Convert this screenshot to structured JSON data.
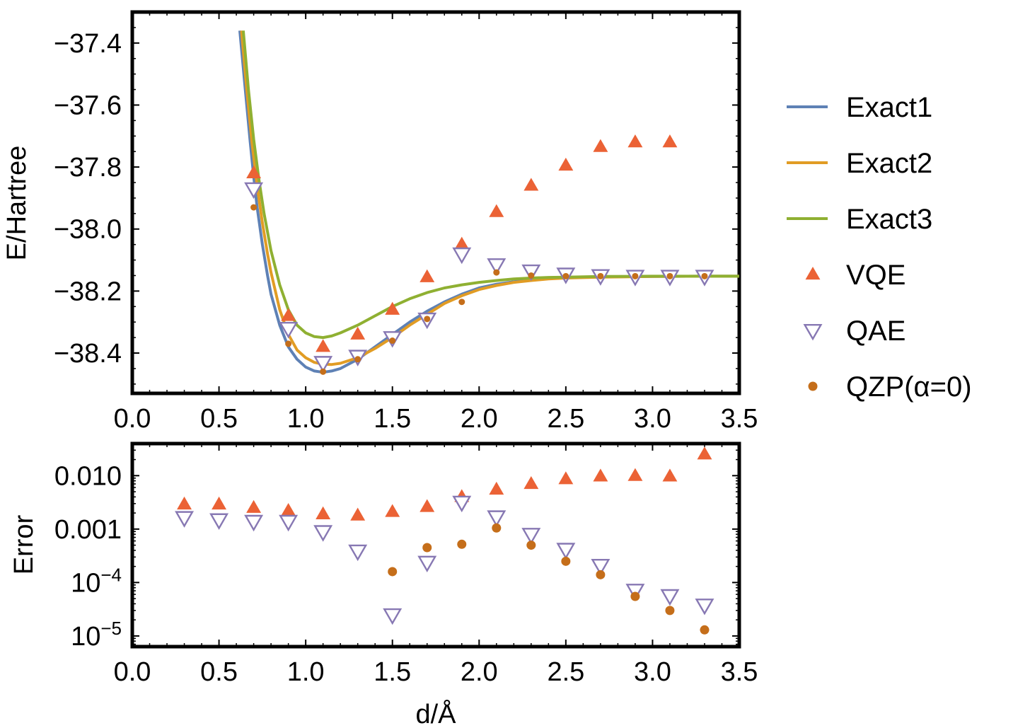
{
  "chart_data": [
    {
      "type": "line",
      "panel": "top",
      "title": "",
      "xlabel": "",
      "ylabel": "E/Hartree",
      "xlim": [
        0.0,
        3.5
      ],
      "ylim": [
        -38.53,
        -37.3
      ],
      "x_ticks": [
        "0.0",
        "0.5",
        "1.0",
        "1.5",
        "2.0",
        "2.5",
        "3.0",
        "3.5"
      ],
      "y_ticks": [
        "−37.4",
        "−37.6",
        "−37.8",
        "−38.0",
        "−38.2",
        "−38.4"
      ],
      "series": [
        {
          "name": "Exact1",
          "kind": "line",
          "color": "#5E81B5",
          "x": [
            0.62,
            0.65,
            0.68,
            0.7,
            0.72,
            0.75,
            0.78,
            0.8,
            0.85,
            0.9,
            0.95,
            1.0,
            1.05,
            1.1,
            1.15,
            1.2,
            1.3,
            1.4,
            1.5,
            1.6,
            1.7,
            1.8,
            1.9,
            2.0,
            2.1,
            2.2,
            2.3,
            2.4,
            2.5,
            2.7,
            3.0,
            3.3,
            3.5
          ],
          "y": [
            -37.36,
            -37.54,
            -37.72,
            -37.83,
            -37.93,
            -38.05,
            -38.15,
            -38.21,
            -38.31,
            -38.38,
            -38.42,
            -38.445,
            -38.458,
            -38.462,
            -38.458,
            -38.45,
            -38.42,
            -38.38,
            -38.34,
            -38.3,
            -38.265,
            -38.235,
            -38.21,
            -38.19,
            -38.178,
            -38.17,
            -38.164,
            -38.16,
            -38.157,
            -38.154,
            -38.153,
            -38.152,
            -38.152
          ]
        },
        {
          "name": "Exact2",
          "kind": "line",
          "color": "#E19C24",
          "x": [
            0.63,
            0.66,
            0.69,
            0.72,
            0.75,
            0.78,
            0.8,
            0.85,
            0.9,
            0.95,
            1.0,
            1.05,
            1.1,
            1.15,
            1.2,
            1.3,
            1.4,
            1.5,
            1.6,
            1.7,
            1.8,
            1.9,
            2.0,
            2.1,
            2.2,
            2.3,
            2.4,
            2.5,
            2.7,
            3.0,
            3.3,
            3.5
          ],
          "y": [
            -37.36,
            -37.55,
            -37.72,
            -37.86,
            -37.98,
            -38.08,
            -38.14,
            -38.26,
            -38.34,
            -38.39,
            -38.415,
            -38.43,
            -38.436,
            -38.437,
            -38.433,
            -38.415,
            -38.385,
            -38.35,
            -38.31,
            -38.275,
            -38.24,
            -38.215,
            -38.195,
            -38.182,
            -38.172,
            -38.166,
            -38.161,
            -38.158,
            -38.155,
            -38.153,
            -38.152,
            -38.152
          ]
        },
        {
          "name": "Exact3",
          "kind": "line",
          "color": "#8FB032",
          "x": [
            0.64,
            0.67,
            0.7,
            0.73,
            0.76,
            0.8,
            0.85,
            0.9,
            0.95,
            1.0,
            1.05,
            1.1,
            1.15,
            1.2,
            1.3,
            1.4,
            1.5,
            1.6,
            1.7,
            1.8,
            1.9,
            2.0,
            2.1,
            2.2,
            2.3,
            2.4,
            2.5,
            2.7,
            3.0,
            3.3,
            3.5
          ],
          "y": [
            -37.36,
            -37.55,
            -37.71,
            -37.84,
            -37.95,
            -38.07,
            -38.18,
            -38.26,
            -38.31,
            -38.335,
            -38.347,
            -38.35,
            -38.345,
            -38.335,
            -38.31,
            -38.28,
            -38.25,
            -38.225,
            -38.205,
            -38.19,
            -38.18,
            -38.172,
            -38.166,
            -38.161,
            -38.158,
            -38.156,
            -38.155,
            -38.153,
            -38.152,
            -38.152,
            -38.152
          ]
        },
        {
          "name": "VQE",
          "kind": "marker",
          "marker": "triangle-up",
          "color": "#EB6235",
          "x": [
            0.7,
            0.9,
            1.1,
            1.3,
            1.5,
            1.7,
            1.9,
            2.1,
            2.3,
            2.5,
            2.7,
            2.9,
            3.1
          ],
          "y": [
            -37.82,
            -38.28,
            -38.38,
            -38.34,
            -38.26,
            -38.155,
            -38.05,
            -37.945,
            -37.86,
            -37.795,
            -37.735,
            -37.72,
            -37.72
          ]
        },
        {
          "name": "QAE",
          "kind": "marker",
          "marker": "triangle-down-open",
          "color": "#8778B3",
          "x": [
            0.7,
            0.9,
            1.1,
            1.3,
            1.5,
            1.7,
            1.9,
            2.1,
            2.3,
            2.5,
            2.7,
            2.9,
            3.1,
            3.3
          ],
          "y": [
            -37.87,
            -38.32,
            -38.43,
            -38.41,
            -38.35,
            -38.29,
            -38.08,
            -38.115,
            -38.135,
            -38.145,
            -38.15,
            -38.152,
            -38.152,
            -38.152
          ]
        },
        {
          "name": "QZP(α=0)",
          "kind": "marker",
          "marker": "dot",
          "color": "#C56E1A",
          "x": [
            0.7,
            0.9,
            1.1,
            1.3,
            1.5,
            1.7,
            1.9,
            2.1,
            2.3,
            2.5,
            2.7,
            2.9,
            3.1,
            3.3
          ],
          "y": [
            -37.93,
            -38.37,
            -38.46,
            -38.42,
            -38.36,
            -38.29,
            -38.235,
            -38.14,
            -38.15,
            -38.152,
            -38.152,
            -38.152,
            -38.152,
            -38.152
          ]
        }
      ]
    },
    {
      "type": "scatter",
      "panel": "bottom",
      "title": "",
      "xlabel": "d/Å",
      "ylabel": "Error",
      "yscale": "log",
      "xlim": [
        0.0,
        3.5
      ],
      "ylim_log10": [
        -5.2,
        -1.4
      ],
      "x_ticks": [
        "0.0",
        "0.5",
        "1.0",
        "1.5",
        "2.0",
        "2.5",
        "3.0",
        "3.5"
      ],
      "y_ticks": [
        {
          "label": "0.010",
          "log10": -2
        },
        {
          "label": "0.001",
          "log10": -3
        },
        {
          "base": "10",
          "exp": "−4",
          "log10": -4
        },
        {
          "base": "10",
          "exp": "−5",
          "log10": -5
        }
      ],
      "series": [
        {
          "name": "VQE",
          "marker": "triangle-up",
          "color": "#EB6235",
          "x": [
            0.3,
            0.5,
            0.7,
            0.9,
            1.1,
            1.3,
            1.5,
            1.7,
            1.9,
            2.1,
            2.3,
            2.5,
            2.7,
            2.9,
            3.1,
            3.3
          ],
          "y": [
            0.0029,
            0.0029,
            0.0025,
            0.0022,
            0.0019,
            0.0018,
            0.0021,
            0.0026,
            0.004,
            0.0055,
            0.007,
            0.0086,
            0.0097,
            0.0099,
            0.0097,
            0.025
          ]
        },
        {
          "name": "QAE",
          "marker": "triangle-down-open",
          "color": "#8778B3",
          "x": [
            0.3,
            0.5,
            0.7,
            0.9,
            1.1,
            1.3,
            1.5,
            1.7,
            1.9,
            2.1,
            2.3,
            2.5,
            2.7,
            2.9,
            3.1,
            3.3
          ],
          "y": [
            0.00165,
            0.0015,
            0.0014,
            0.0014,
            0.0009,
            0.00039,
            2.5e-05,
            0.00024,
            0.0032,
            0.0017,
            0.0008,
            0.00042,
            0.00021,
            7.2e-05,
            5.7e-05,
            3.8e-05
          ]
        },
        {
          "name": "QZP(α=0)",
          "marker": "dot",
          "color": "#C56E1A",
          "x": [
            1.5,
            1.7,
            1.9,
            2.1,
            2.3,
            2.5,
            2.7,
            2.9,
            3.1,
            3.3
          ],
          "y": [
            0.00016,
            0.00045,
            0.00052,
            0.00105,
            0.0005,
            0.00025,
            0.00014,
            5.5e-05,
            3e-05,
            1.3e-05
          ]
        }
      ]
    }
  ],
  "legend": {
    "placement": "right",
    "entries": [
      {
        "label": "Exact1",
        "symbol": "line",
        "color": "#5E81B5"
      },
      {
        "label": "Exact2",
        "symbol": "line",
        "color": "#E19C24"
      },
      {
        "label": "Exact3",
        "symbol": "line",
        "color": "#8FB032"
      },
      {
        "label": "VQE",
        "symbol": "triangle-up",
        "color": "#EB6235"
      },
      {
        "label": "QAE",
        "symbol": "triangle-down-open",
        "color": "#8778B3"
      },
      {
        "label": "QZP(α=0)",
        "symbol": "dot",
        "color": "#C56E1A"
      }
    ]
  }
}
